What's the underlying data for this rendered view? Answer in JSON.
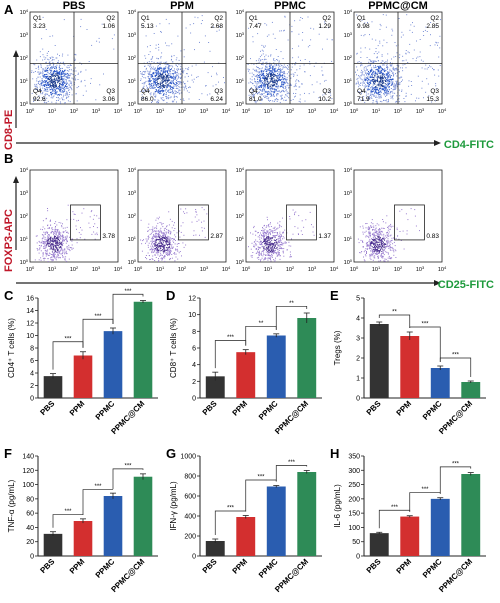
{
  "figure": {
    "panel_letters": [
      "A",
      "B",
      "C",
      "D",
      "E",
      "F",
      "G",
      "H"
    ],
    "group_headers": [
      "PBS",
      "PPM",
      "PPMC",
      "PPMC@CM"
    ]
  },
  "flow_cd4_cd8": {
    "y_axis_label": "CD8-PE",
    "x_axis_label": "CD4-FITC",
    "quadrant_labels": [
      "Q1",
      "Q2",
      "Q3",
      "Q4"
    ],
    "tick_labels": [
      "10",
      "0",
      "1",
      "2",
      "3",
      "4"
    ],
    "colors": {
      "low": "#1a3a8c",
      "mid": "#2d58c8",
      "sparse": "#7a8fd6",
      "axis_label_y": "#c0182a",
      "axis_label_x": "#1e9a3c"
    },
    "plots": [
      {
        "group": "PBS",
        "q1": "3.23",
        "q2": "1.06",
        "q3": "3.06",
        "q4": "92.6"
      },
      {
        "group": "PPM",
        "q1": "5.13",
        "q2": "2.68",
        "q3": "6.24",
        "q4": "86.0"
      },
      {
        "group": "PPMC",
        "q1": "7.47",
        "q2": "1.29",
        "q3": "10.2",
        "q4": "81.0"
      },
      {
        "group": "PPMC@CM",
        "q1": "9.98",
        "q2": "2.85",
        "q3": "15.3",
        "q4": "71.9"
      }
    ]
  },
  "flow_treg": {
    "y_axis_label": "FOXP3-APC",
    "x_axis_label": "CD25-FITC",
    "tick_labels": [
      "10",
      "0",
      "1",
      "2",
      "3",
      "4"
    ],
    "colors": {
      "dense": "#4b2f8f",
      "sparse": "#9b7fd0",
      "axis_label_y": "#c0182a",
      "axis_label_x": "#1e9a3c"
    },
    "gate_values": [
      "3.78",
      "2.87",
      "1.37",
      "0.83"
    ]
  },
  "chart_data": [
    {
      "panel": "C",
      "type": "bar",
      "categories": [
        "PBS",
        "PPM",
        "PPMC",
        "PPMC@CM"
      ],
      "values": [
        3.5,
        6.8,
        10.7,
        15.4
      ],
      "errors": [
        0.4,
        0.6,
        0.5,
        0.2
      ],
      "ylabel": "CD4⁺ T cells (%)",
      "ylim": [
        0,
        16
      ],
      "yticks": [
        0,
        2,
        4,
        6,
        8,
        10,
        12,
        14,
        16
      ],
      "colors": [
        "#333333",
        "#d32f2f",
        "#2a5db0",
        "#2e8b57"
      ],
      "brackets": [
        {
          "from": 0,
          "to": 1,
          "y": 9.0,
          "label": "***"
        },
        {
          "from": 1,
          "to": 2,
          "y": 12.6,
          "label": "***"
        },
        {
          "from": 2,
          "to": 3,
          "y": 16.6,
          "label": "***"
        }
      ]
    },
    {
      "panel": "D",
      "type": "bar",
      "categories": [
        "PBS",
        "PPM",
        "PPMC",
        "PPMC@CM"
      ],
      "values": [
        2.6,
        5.5,
        7.5,
        9.6
      ],
      "errors": [
        0.5,
        0.3,
        0.2,
        0.6
      ],
      "ylabel": "CD8⁺ T cells (%)",
      "ylim": [
        0,
        12
      ],
      "yticks": [
        0,
        2,
        4,
        6,
        8,
        10,
        12
      ],
      "colors": [
        "#333333",
        "#d32f2f",
        "#2a5db0",
        "#2e8b57"
      ],
      "brackets": [
        {
          "from": 0,
          "to": 1,
          "y": 6.9,
          "label": "***"
        },
        {
          "from": 1,
          "to": 2,
          "y": 8.6,
          "label": "**"
        },
        {
          "from": 2,
          "to": 3,
          "y": 11.0,
          "label": "**"
        }
      ]
    },
    {
      "panel": "E",
      "type": "bar",
      "categories": [
        "PBS",
        "PPM",
        "PPMC",
        "PPMC@CM"
      ],
      "values": [
        3.7,
        3.1,
        1.5,
        0.8
      ],
      "errors": [
        0.1,
        0.2,
        0.1,
        0.05
      ],
      "ylabel": "Tregs (%)",
      "ylim": [
        0,
        5
      ],
      "yticks": [
        0,
        1,
        2,
        3,
        4,
        5
      ],
      "colors": [
        "#333333",
        "#d32f2f",
        "#2a5db0",
        "#2e8b57"
      ],
      "brackets": [
        {
          "from": 0,
          "to": 1,
          "y": 4.15,
          "label": "**"
        },
        {
          "from": 1,
          "to": 2,
          "y": 3.55,
          "label": "***"
        },
        {
          "from": 2,
          "to": 3,
          "y": 2.0,
          "label": "***"
        }
      ]
    },
    {
      "panel": "F",
      "type": "bar",
      "categories": [
        "PBS",
        "PPM",
        "PPMC",
        "PPMC@CM"
      ],
      "values": [
        31,
        49,
        84,
        111
      ],
      "errors": [
        3,
        3,
        4,
        4
      ],
      "ylabel": "TNF-α (pg/mL)",
      "ylim": [
        0,
        140
      ],
      "yticks": [
        0,
        20,
        40,
        60,
        80,
        100,
        120,
        140
      ],
      "colors": [
        "#333333",
        "#d32f2f",
        "#2a5db0",
        "#2e8b57"
      ],
      "brackets": [
        {
          "from": 0,
          "to": 1,
          "y": 58,
          "label": "***"
        },
        {
          "from": 1,
          "to": 2,
          "y": 93,
          "label": "***"
        },
        {
          "from": 2,
          "to": 3,
          "y": 122,
          "label": "***"
        }
      ]
    },
    {
      "panel": "G",
      "type": "bar",
      "categories": [
        "PBS",
        "PPM",
        "PPMC",
        "PPMC@CM"
      ],
      "values": [
        150,
        390,
        695,
        840
      ],
      "errors": [
        20,
        15,
        10,
        15
      ],
      "ylabel": "IFN-γ (pg/mL)",
      "ylim": [
        0,
        1000
      ],
      "yticks": [
        0,
        200,
        400,
        600,
        800,
        1000
      ],
      "colors": [
        "#333333",
        "#d32f2f",
        "#2a5db0",
        "#2e8b57"
      ],
      "brackets": [
        {
          "from": 0,
          "to": 1,
          "y": 450,
          "label": "***"
        },
        {
          "from": 1,
          "to": 2,
          "y": 760,
          "label": "***"
        },
        {
          "from": 2,
          "to": 3,
          "y": 905,
          "label": "***"
        }
      ]
    },
    {
      "panel": "H",
      "type": "bar",
      "categories": [
        "PBS",
        "PPM",
        "PPMC",
        "PPMC@CM"
      ],
      "values": [
        80,
        138,
        200,
        287
      ],
      "errors": [
        3,
        3,
        4,
        5
      ],
      "ylabel": "IL-6 (pg/mL)",
      "ylim": [
        0,
        350
      ],
      "yticks": [
        0,
        50,
        100,
        150,
        200,
        250,
        300,
        350
      ],
      "colors": [
        "#333333",
        "#d32f2f",
        "#2a5db0",
        "#2e8b57"
      ],
      "brackets": [
        {
          "from": 0,
          "to": 1,
          "y": 160,
          "label": "***"
        },
        {
          "from": 1,
          "to": 2,
          "y": 222,
          "label": "***"
        },
        {
          "from": 2,
          "to": 3,
          "y": 312,
          "label": "***"
        }
      ]
    }
  ]
}
